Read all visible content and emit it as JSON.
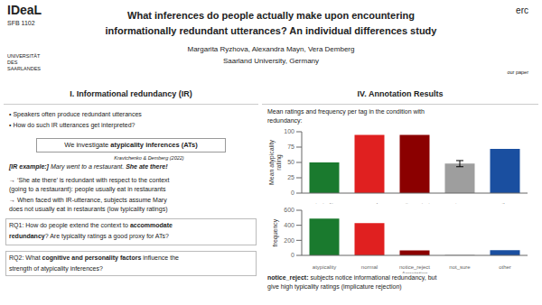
{
  "chart_data": [
    {
      "type": "bar",
      "categories": [
        "atypicality",
        "normal",
        "notice_reject",
        "not_sure",
        "other"
      ],
      "values": [
        50,
        95,
        95,
        48,
        72
      ],
      "error": [
        null,
        null,
        null,
        5,
        null
      ],
      "colors": [
        "#1a7a2e",
        "#e02020",
        "#8b0000",
        "#9e9e9e",
        "#1a4fa0"
      ],
      "ylabel": "Mean atypicality\nrating",
      "ylim": [
        0,
        100
      ],
      "yticks": [
        0,
        25,
        50,
        75,
        100
      ],
      "grid": false,
      "annotations": [
        "IDeaL",
        "SFB 1102",
        "UNIVERSITÄT",
        "DES",
        "SAARLANDES",
        "erc",
        "our paper",
        "What inferences do people actually make upon encountering",
        "informationally redundant utterances? An individual differences study",
        "Margarita Ryzhova, Alexandra Mayn, Vera Demberg",
        "Saarland University, Germany",
        "I. Informational redundancy (IR)",
        "IV. Annotation Results",
        "• Speakers often produce redundant utterances",
        "• How do such IR utterances get interpreted?",
        "We investigate ",
        "atypicality inferences (ATs)",
        "Kravtchenko & Demberg (2022)",
        "[IR example:] ",
        "Mary went to a restaurant. ",
        "She ate there!",
        "→ ‘She ate there’ is redundant with respect to the context\n(going to a restaurant): people usually eat in restaurants",
        "→ When faced with IR-utterance, subjects assume Mary\ndoes not usually eat in restaurants (low typicality ratings)",
        "RQ1: How do people extend the context to ",
        "accommodate",
        "redundancy",
        "? Are typicality ratings a good proxy for ATs?",
        "RQ2: What ",
        "cognitive and personality factors",
        " influence the",
        "strength of atypicality inferences?",
        "Mean ratings and frequency per tag in the condition with\nredundancy:"
      ]
    },
    {
      "type": "bar",
      "categories": [
        "atypicality",
        "normal",
        "notice_reject\nAnnotation",
        "not_sure",
        "other"
      ],
      "values": [
        490,
        430,
        65,
        5,
        70
      ],
      "colors": [
        "#1a7a2e",
        "#e02020",
        "#8b0000",
        "#9e9e9e",
        "#1a4fa0"
      ],
      "ylabel": "frequency",
      "ylim": [
        0,
        600
      ],
      "yticks": [
        0,
        200,
        400,
        600
      ],
      "grid": false,
      "annotations": [
        "notice_reject:",
        "subjects notice informational redundancy, but",
        "give high typicality ratings (implicature rejection)"
      ]
    }
  ]
}
